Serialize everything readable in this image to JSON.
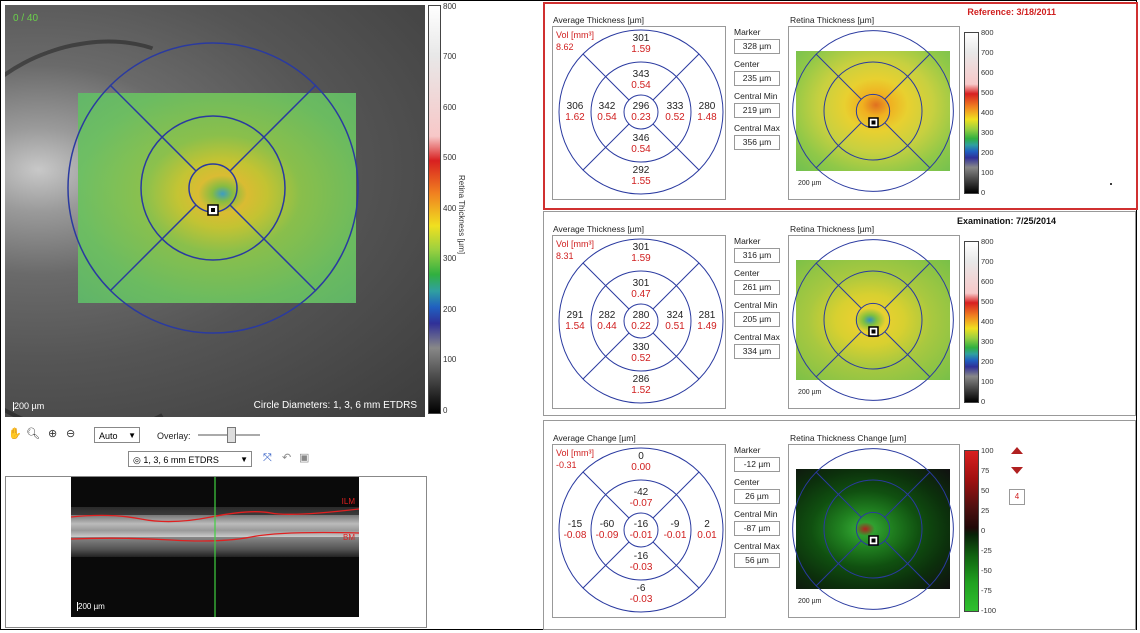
{
  "fundus": {
    "top_label": "0 / 40",
    "scale": "200 µm",
    "circle_diameters": "Circle Diameters: 1, 3, 6 mm ETDRS"
  },
  "colorbar_main": {
    "title": "Retina Thickness [µm]",
    "ticks": [
      "800",
      "700",
      "600",
      "500",
      "400",
      "300",
      "200",
      "100",
      "0"
    ]
  },
  "toolbar": {
    "auto_select": "Auto",
    "overlay_label": "Overlay:",
    "etdrs_select": "1, 3, 6 mm ETDRS",
    "icons": [
      "hand-icon",
      "zoom-icon",
      "zoom-in-icon",
      "zoom-out-icon"
    ]
  },
  "oct": {
    "ilm_label": "ILM",
    "bm_label": "BM",
    "scale": "200 µm"
  },
  "panels": [
    {
      "header": "Reference: 3/18/2011",
      "header_color": "#d02020",
      "grid_title": "Average Thickness [µm]",
      "vol_label": "Vol [mm³]",
      "vol": "8.62",
      "sectors": {
        "outer_top": [
          "301",
          "1.59"
        ],
        "inner_top": [
          "343",
          "0.54"
        ],
        "outer_left": [
          "306",
          "1.62"
        ],
        "inner_left": [
          "342",
          "0.54"
        ],
        "center": [
          "296",
          "0.23"
        ],
        "inner_right": [
          "333",
          "0.52"
        ],
        "outer_right": [
          "280",
          "1.48"
        ],
        "inner_bottom": [
          "346",
          "0.54"
        ],
        "outer_bottom": [
          "292",
          "1.55"
        ]
      },
      "metrics": [
        {
          "label": "Marker",
          "value": "328 µm"
        },
        {
          "label": "Center",
          "value": "235 µm"
        },
        {
          "label": "Central Min",
          "value": "219 µm"
        },
        {
          "label": "Central Max",
          "value": "356 µm"
        }
      ],
      "map_title": "Retina Thickness [µm]",
      "map_scale": "200 µm",
      "cbar_ticks": [
        "800",
        "700",
        "600",
        "500",
        "400",
        "300",
        "200",
        "100",
        "0"
      ]
    },
    {
      "header": "Examination: 7/25/2014",
      "header_color": "#111111",
      "grid_title": "Average Thickness [µm]",
      "vol_label": "Vol [mm³]",
      "vol": "8.31",
      "sectors": {
        "outer_top": [
          "301",
          "1.59"
        ],
        "inner_top": [
          "301",
          "0.47"
        ],
        "outer_left": [
          "291",
          "1.54"
        ],
        "inner_left": [
          "282",
          "0.44"
        ],
        "center": [
          "280",
          "0.22"
        ],
        "inner_right": [
          "324",
          "0.51"
        ],
        "outer_right": [
          "281",
          "1.49"
        ],
        "inner_bottom": [
          "330",
          "0.52"
        ],
        "outer_bottom": [
          "286",
          "1.52"
        ]
      },
      "metrics": [
        {
          "label": "Marker",
          "value": "316 µm"
        },
        {
          "label": "Center",
          "value": "261 µm"
        },
        {
          "label": "Central Min",
          "value": "205 µm"
        },
        {
          "label": "Central Max",
          "value": "334 µm"
        }
      ],
      "map_title": "Retina Thickness [µm]",
      "map_scale": "200 µm",
      "cbar_ticks": [
        "800",
        "700",
        "600",
        "500",
        "400",
        "300",
        "200",
        "100",
        "0"
      ]
    },
    {
      "header": "",
      "header_color": "#111111",
      "grid_title": "Average Change [µm]",
      "vol_label": "Vol [mm³]",
      "vol": "-0.31",
      "sectors": {
        "outer_top": [
          "0",
          "0.00"
        ],
        "inner_top": [
          "-42",
          "-0.07"
        ],
        "outer_left": [
          "-15",
          "-0.08"
        ],
        "inner_left": [
          "-60",
          "-0.09"
        ],
        "center": [
          "-16",
          "-0.01"
        ],
        "inner_right": [
          "-9",
          "-0.01"
        ],
        "outer_right": [
          "2",
          "0.01"
        ],
        "inner_bottom": [
          "-16",
          "-0.03"
        ],
        "outer_bottom": [
          "-6",
          "-0.03"
        ]
      },
      "metrics": [
        {
          "label": "Marker",
          "value": "-12 µm"
        },
        {
          "label": "Center",
          "value": "26 µm"
        },
        {
          "label": "Central Min",
          "value": "-87 µm"
        },
        {
          "label": "Central Max",
          "value": "56 µm"
        }
      ],
      "map_title": "Retina Thickness Change [µm]",
      "map_scale": "200 µm",
      "cbar_ticks": [
        "100",
        "75",
        "50",
        "25",
        "0",
        "-25",
        "-50",
        "-75",
        "-100"
      ],
      "step_value": "4"
    }
  ],
  "colors": {
    "grid_line": "#2a3aa0",
    "value_red": "#d02020",
    "ilm": "#e02020",
    "marker_line": "#40d040"
  }
}
